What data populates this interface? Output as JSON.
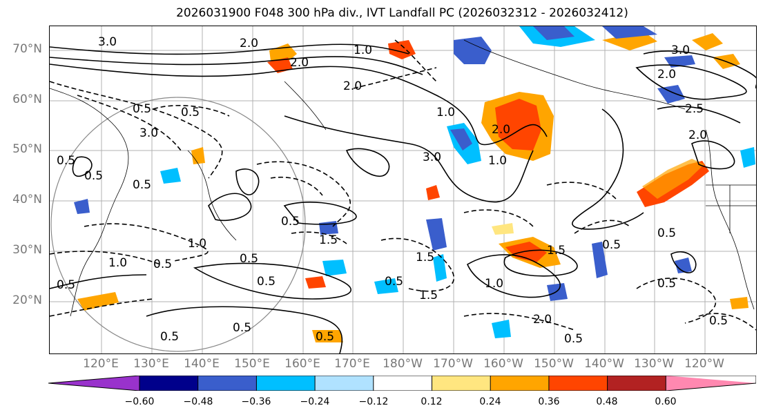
{
  "title": "2026031900 F048 300 hPa div., IVT Landfall PC (2026032312 - 2026032412)",
  "lat_labels": [
    "70°N",
    "60°N",
    "50°N",
    "40°N",
    "30°N",
    "20°N"
  ],
  "lon_labels": [
    "120°E",
    "130°E",
    "140°E",
    "150°E",
    "160°E",
    "170°E",
    "180°W",
    "170°W",
    "160°W",
    "150°W",
    "140°W",
    "130°W",
    "120°W"
  ],
  "colorbar": {
    "colors": [
      "#9932cc",
      "#00008b",
      "#3a5ecc",
      "#00bfff",
      "#b0e2ff",
      "#ffffff",
      "#ffe680",
      "#ffa500",
      "#ff4500",
      "#b22222",
      "#ff88b0",
      "#ff88b0"
    ],
    "tick_labels": [
      "−0.60",
      "−0.48",
      "−0.36",
      "−0.24",
      "−0.12",
      "0.12",
      "0.24",
      "0.36",
      "0.48",
      "0.60"
    ]
  },
  "contour_labels": [
    "3.0",
    "2.0",
    "1.0",
    "0.5",
    "2.0",
    "2.0",
    "3.0",
    "3.0",
    "2.0",
    "1.0",
    "0.5",
    "0.5",
    "0.5",
    "3.0",
    "1.0",
    "0.5",
    "2.0",
    "2.0",
    "1.0",
    "1.5",
    "0.5",
    "2.5",
    "0.5",
    "0.5",
    "0.5",
    "1.0",
    "1.5",
    "0.5",
    "0.5",
    "1.5",
    "1.5",
    "1.0",
    "0.5",
    "0.5",
    "0.5",
    "0.5",
    "2.0",
    "0.5",
    "0.5",
    "0.5",
    "0.5"
  ],
  "icons": {
    "map": "world-map-icon",
    "range_ring": "range-ring-icon"
  }
}
